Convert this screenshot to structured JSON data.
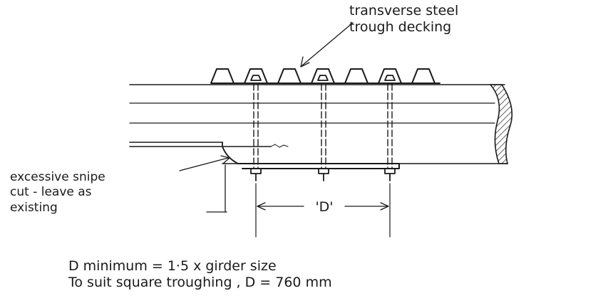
{
  "labels": {
    "decking_line1": "transverse steel",
    "decking_line2": "trough decking",
    "snipe_line1": "excessive snipe",
    "snipe_line2": "cut - leave as",
    "snipe_line3": "existing",
    "dimension": "'D'",
    "note_line1": "D minimum  = 1·5 x girder size",
    "note_line2": "To suit square troughing , D = 760 mm"
  }
}
